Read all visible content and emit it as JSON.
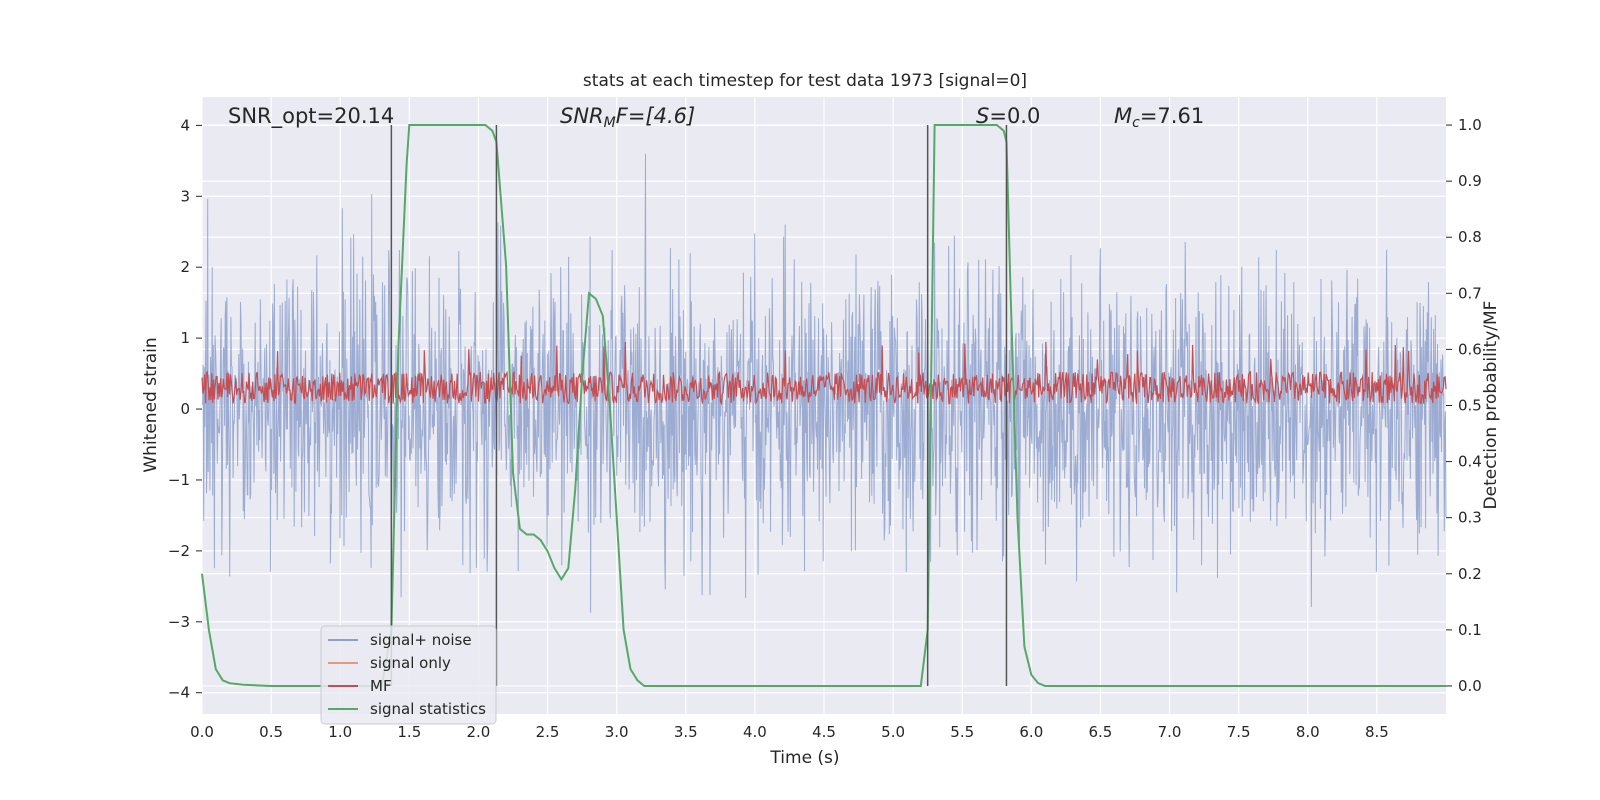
{
  "chart_data": {
    "type": "line",
    "title": "stats at each timestep for test data 1973 [signal=0]",
    "xlabel": "Time (s)",
    "ylabel_left": "Whitened strain",
    "ylabel_right": "Detection probability/MF",
    "xlim": [
      0.0,
      9.0
    ],
    "ylim_left": [
      -4.3,
      4.4
    ],
    "ylim_right": [
      -0.05,
      1.05
    ],
    "x_ticks": [
      "0.0",
      "0.5",
      "1.0",
      "1.5",
      "2.0",
      "2.5",
      "3.0",
      "3.5",
      "4.0",
      "4.5",
      "5.0",
      "5.5",
      "6.0",
      "6.5",
      "7.0",
      "7.5",
      "8.0",
      "8.5"
    ],
    "x_tick_values": [
      0.0,
      0.5,
      1.0,
      1.5,
      2.0,
      2.5,
      3.0,
      3.5,
      4.0,
      4.5,
      5.0,
      5.5,
      6.0,
      6.5,
      7.0,
      7.5,
      8.0,
      8.5
    ],
    "y_left_ticks": [
      "−4",
      "−3",
      "−2",
      "−1",
      "0",
      "1",
      "2",
      "3",
      "4"
    ],
    "y_left_tick_values": [
      -4,
      -3,
      -2,
      -1,
      0,
      1,
      2,
      3,
      4
    ],
    "y_right_ticks": [
      "0.0",
      "0.1",
      "0.2",
      "0.3",
      "0.4",
      "0.5",
      "0.6",
      "0.7",
      "0.8",
      "0.9",
      "1.0"
    ],
    "y_right_tick_values": [
      0.0,
      0.1,
      0.2,
      0.3,
      0.4,
      0.5,
      0.6,
      0.7,
      0.8,
      0.9,
      1.0
    ],
    "annotations": {
      "snr_opt": "SNR_opt=20.14",
      "snr_mf_base": "SNR",
      "snr_mf_sub": "M",
      "snr_mf_rest": "F=[4.6]",
      "s_italic": "S",
      "s_value": "=0.0",
      "mc_base": "M",
      "mc_sub": "c",
      "mc_value": "=7.61"
    },
    "vertical_lines": [
      1.37,
      2.13,
      5.25,
      5.82
    ],
    "series": [
      {
        "name": "signal+ noise",
        "color": "#8da0cb",
        "kind": "noise",
        "amplitude": 2.2,
        "peak": 3.6
      },
      {
        "name": "signal only",
        "color": "#e9967a",
        "kind": "flat"
      },
      {
        "name": "MF",
        "color": "#c44e52",
        "kind": "mf",
        "base": 0.3,
        "max": 0.95
      },
      {
        "name": "signal statistics",
        "color": "#55a868",
        "kind": "line",
        "x": [
          0.0,
          0.05,
          0.1,
          0.15,
          0.2,
          0.3,
          0.5,
          1.0,
          1.3,
          1.37,
          1.42,
          1.48,
          1.5,
          2.0,
          2.05,
          2.1,
          2.13,
          2.2,
          2.25,
          2.3,
          2.35,
          2.4,
          2.45,
          2.5,
          2.55,
          2.6,
          2.65,
          2.7,
          2.75,
          2.8,
          2.85,
          2.9,
          2.95,
          3.0,
          3.05,
          3.1,
          3.15,
          3.2,
          3.5,
          4.0,
          4.5,
          5.0,
          5.1,
          5.2,
          5.25,
          5.3,
          5.35,
          5.5,
          5.7,
          5.75,
          5.8,
          5.82,
          5.85,
          5.9,
          5.95,
          6.0,
          6.05,
          6.1,
          6.5,
          7.0,
          7.5,
          8.0,
          8.5,
          9.0
        ],
        "y": [
          0.2,
          0.1,
          0.03,
          0.01,
          0.005,
          0.002,
          0.0,
          0.0,
          0.0,
          0.1,
          0.6,
          0.93,
          1.0,
          1.0,
          1.0,
          0.99,
          0.97,
          0.75,
          0.38,
          0.28,
          0.27,
          0.27,
          0.26,
          0.24,
          0.21,
          0.19,
          0.21,
          0.35,
          0.55,
          0.7,
          0.69,
          0.66,
          0.5,
          0.3,
          0.1,
          0.03,
          0.01,
          0.0,
          0.0,
          0.0,
          0.0,
          0.0,
          0.0,
          0.0,
          0.1,
          1.0,
          1.0,
          1.0,
          1.0,
          1.0,
          0.99,
          0.97,
          0.7,
          0.3,
          0.07,
          0.02,
          0.005,
          0.0,
          0.0,
          0.0,
          0.0,
          0.0,
          0.0,
          0.0
        ]
      }
    ],
    "legend": {
      "placement": "lower-left",
      "entries": [
        "signal+ noise",
        "signal only",
        "MF",
        "signal statistics"
      ]
    }
  }
}
